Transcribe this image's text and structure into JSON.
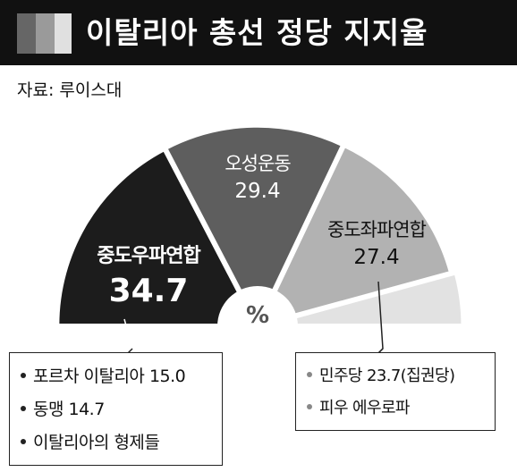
{
  "header": {
    "title": "이탈리아 총선 정당 지지율",
    "blocks": [
      "#666666",
      "#9a9a9a",
      "#e0e0e0"
    ]
  },
  "source": "자료: 루이스대",
  "chart_data": {
    "type": "pie",
    "unit": "%",
    "layout": "semicircle",
    "series": [
      {
        "name": "중도우파연합",
        "value": 34.7,
        "value_label": "34.7",
        "color": "#1c1c1c",
        "text_color": "#ffffff"
      },
      {
        "name": "오성운동",
        "value": 29.4,
        "value_label": "29.4",
        "color": "#5e5e5e",
        "text_color": "#ffffff"
      },
      {
        "name": "중도좌파연합",
        "value": 27.4,
        "value_label": "27.4",
        "color": "#b2b2b2",
        "text_color": "#111111"
      },
      {
        "name": "",
        "value": 8.5,
        "value_label": "",
        "color": "#e2e2e2",
        "text_color": "#111111"
      }
    ],
    "center_label": "%"
  },
  "callouts": {
    "left": [
      "포르차 이탈리아 15.0",
      "동맹 14.7",
      "이탈리아의 형제들"
    ],
    "right": [
      "민주당 23.7(집권당)",
      "피우 에우로파"
    ]
  }
}
